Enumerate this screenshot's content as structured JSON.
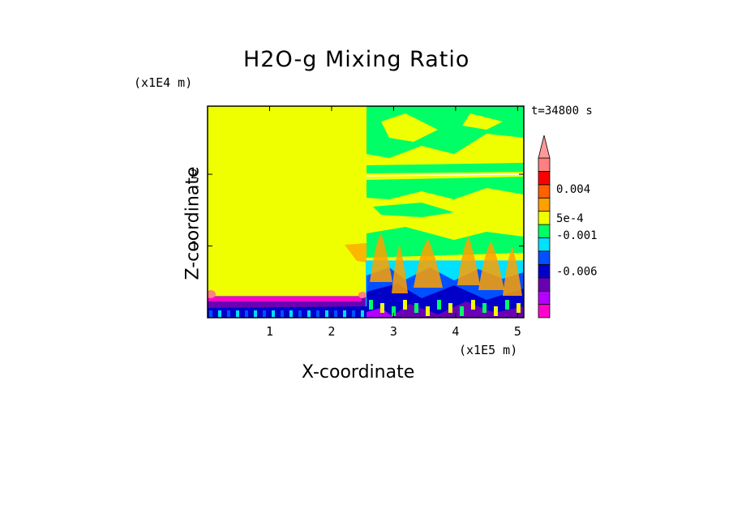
{
  "chart_data": {
    "type": "heatmap",
    "title": "H2O-g Mixing Ratio",
    "xlabel": "X-coordinate",
    "ylabel": "Z-coordinate",
    "x_scale_label": "(x1E5 m)",
    "y_scale_label": "(x1E4 m)",
    "time_label": "t=34800 s",
    "xlim": [
      0,
      5.1
    ],
    "ylim": [
      0,
      2.95
    ],
    "x_ticks": [
      "1",
      "2",
      "3",
      "4",
      "5"
    ],
    "y_ticks": [
      "1",
      "2"
    ],
    "colorbar": {
      "levels": [
        "#ff00cc",
        "#b400ff",
        "#6a00b4",
        "#0000c8",
        "#0050ff",
        "#00e0ff",
        "#00ff66",
        "#f0ff00",
        "#ffa000",
        "#ff6000",
        "#ff0000",
        "#ff8080"
      ],
      "extend_color": "#ff9999",
      "labels": [
        "0.004",
        "5e-4",
        "-0.001",
        "-0.006"
      ]
    },
    "field_regions": [
      {
        "x": [
          0,
          2.55
        ],
        "z": [
          0.3,
          2.95
        ],
        "value": "5e-4",
        "color": "#f0ff00"
      },
      {
        "x": [
          0,
          2.55
        ],
        "z": [
          0.0,
          0.3
        ],
        "value": "-0.006",
        "color": "#6a00b4"
      },
      {
        "x": [
          2.55,
          5.1
        ],
        "z": [
          0.0,
          0.8
        ],
        "value": "-0.001",
        "color": "#00e0ff"
      },
      {
        "x": [
          2.55,
          5.1
        ],
        "z": [
          0.8,
          2.95
        ],
        "value": "5e-4",
        "color": "#f0ff00"
      }
    ]
  },
  "colors": {
    "background": "#ffffff",
    "frame": "#000000"
  }
}
